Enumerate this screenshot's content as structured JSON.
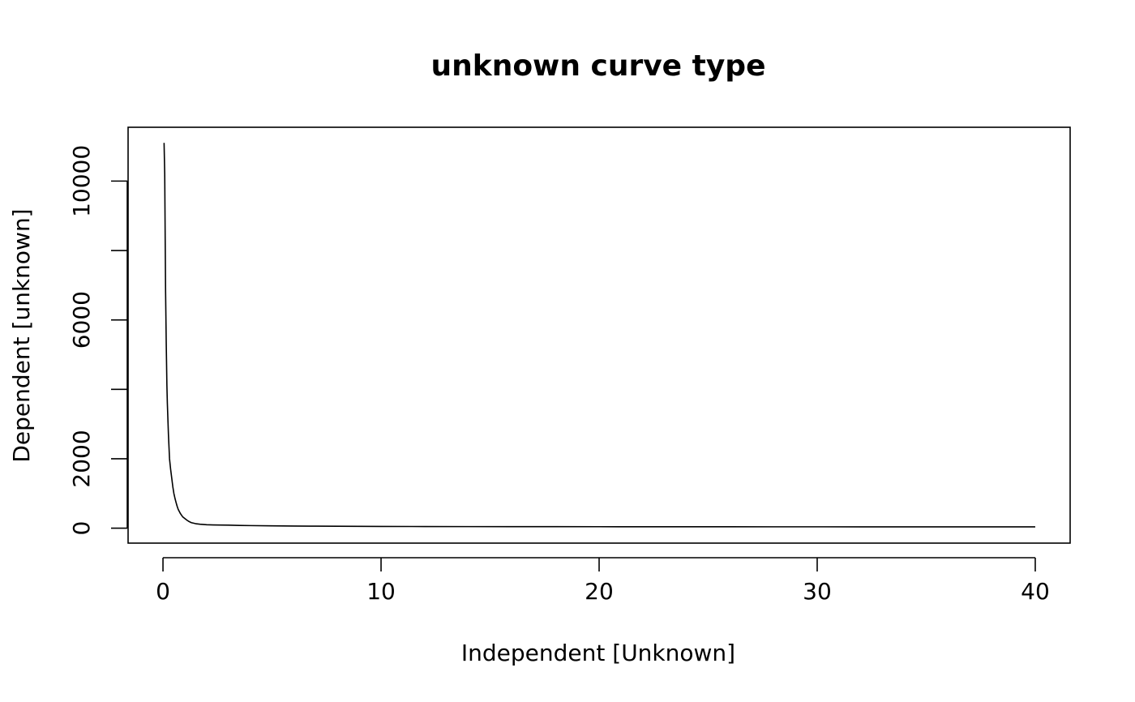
{
  "chart_data": {
    "type": "line",
    "title": "unknown curve type",
    "xlabel": "Independent [Unknown]",
    "ylabel": "Dependent [unknown]",
    "xlim": [
      -1.6,
      41.6
    ],
    "ylim": [
      -430,
      11550
    ],
    "x_ticks": [
      0,
      10,
      20,
      30,
      40
    ],
    "x_tick_labels": [
      "0",
      "10",
      "20",
      "30",
      "40"
    ],
    "y_ticks": [
      0,
      2000,
      4000,
      6000,
      8000,
      10000
    ],
    "y_tick_labels": [
      "0",
      "2000",
      "",
      "6000",
      "",
      "10000"
    ],
    "grid": false,
    "series": [
      {
        "color": "#000000",
        "x": [
          0.05,
          0.08,
          0.1,
          0.12,
          0.15,
          0.18,
          0.2,
          0.25,
          0.3,
          0.35,
          0.4,
          0.45,
          0.5,
          0.55,
          0.6,
          0.65,
          0.7,
          0.8,
          0.9,
          1.0,
          1.1,
          1.2,
          1.3,
          1.5,
          1.7,
          2.0,
          2.3,
          2.6,
          3.0,
          3.5,
          4.0,
          5.0,
          6.0,
          7.0,
          8.0,
          10.0,
          12.0,
          14.0,
          16.0,
          18.0,
          20.0,
          22.0,
          24.0,
          26.0,
          28.0,
          30.0,
          32.0,
          34.0,
          36.0,
          38.0,
          40.0
        ],
        "y": [
          11100,
          10200,
          8400,
          6800,
          5300,
          4100,
          3600,
          2700,
          2000,
          1700,
          1450,
          1200,
          1000,
          860,
          740,
          630,
          540,
          420,
          330,
          280,
          230,
          190,
          160,
          130,
          115,
          100,
          95,
          90,
          88,
          80,
          75,
          68,
          62,
          58,
          55,
          50,
          48,
          46,
          45,
          44,
          43,
          42,
          41,
          41,
          40,
          40,
          39,
          39,
          38,
          38,
          38
        ]
      }
    ]
  }
}
